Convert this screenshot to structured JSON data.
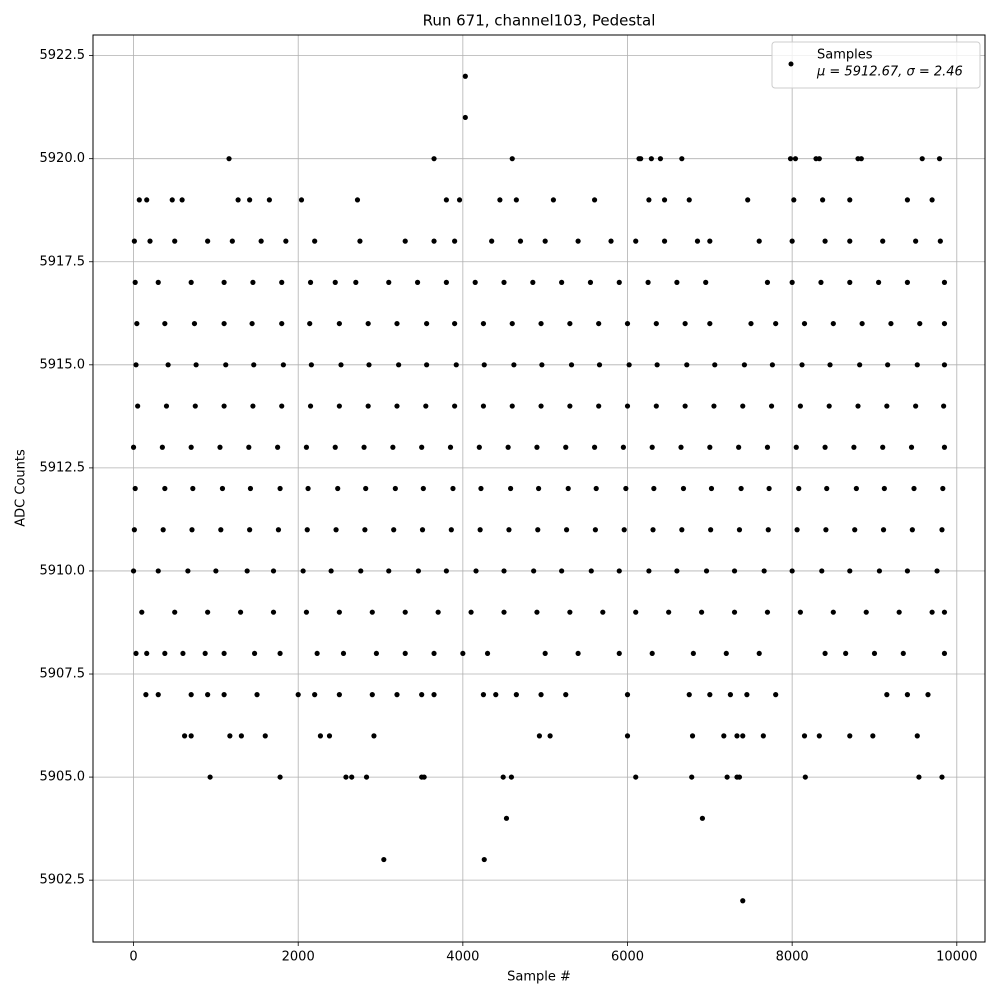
{
  "chart_data": {
    "type": "scatter",
    "title": "Run 671, channel103, Pedestal",
    "x_label": "Sample #",
    "y_label": "ADC Counts",
    "xlim": [
      -492.5,
      10342.5
    ],
    "ylim": [
      5901,
      5923
    ],
    "xticks": [
      0,
      2000,
      4000,
      6000,
      8000,
      10000
    ],
    "yticks": [
      5902.5,
      {
        "value": 5905,
        "label": "5905.0"
      },
      5907.5,
      {
        "value": 5910,
        "label": "5910.0"
      },
      5912.5,
      {
        "value": 5915,
        "label": "5915.0"
      },
      5917.5,
      {
        "value": 5920,
        "label": "5920.0"
      },
      5922.5
    ],
    "grid": true,
    "legend": "upper right",
    "stats_label": "μ = 5912.67, σ = 2.46",
    "series": [
      {
        "name": "Samples",
        "color": "#000000",
        "x": [
          0,
          350,
          700,
          1050,
          1400,
          1750,
          2100,
          2450,
          2800,
          3150,
          3500,
          3850,
          4200,
          4550,
          4900,
          5250,
          5600,
          5950,
          6300,
          6650,
          7000,
          7350,
          7700,
          8050,
          8400,
          8750,
          9100,
          9450,
          9850,
          50,
          400,
          750,
          1100,
          1450,
          1800,
          2150,
          2500,
          2850,
          3200,
          3550,
          3900,
          4250,
          4600,
          4950,
          5300,
          5650,
          6000,
          6350,
          6700,
          7050,
          7400,
          7750,
          8100,
          8450,
          8800,
          9150,
          9500,
          9840,
          20,
          380,
          720,
          1080,
          1420,
          1780,
          2120,
          2480,
          2820,
          3180,
          3520,
          3880,
          4220,
          4580,
          4920,
          5280,
          5620,
          5980,
          6320,
          6680,
          7020,
          7380,
          7720,
          8080,
          8420,
          8780,
          9120,
          9480,
          9830,
          10,
          360,
          710,
          1060,
          1410,
          1760,
          2110,
          2460,
          2810,
          3160,
          3510,
          3860,
          4210,
          4560,
          4910,
          5260,
          5610,
          5960,
          6310,
          6660,
          7010,
          7360,
          7710,
          8060,
          8410,
          8760,
          9110,
          9460,
          9820,
          30,
          420,
          760,
          1120,
          1460,
          1820,
          2160,
          2520,
          2860,
          3220,
          3560,
          3920,
          4260,
          4620,
          4960,
          5320,
          5660,
          6020,
          6360,
          6720,
          7060,
          7420,
          7760,
          8120,
          8460,
          8820,
          9160,
          9520,
          9850,
          0,
          300,
          660,
          1000,
          1380,
          1700,
          2060,
          2400,
          2760,
          3100,
          3460,
          3800,
          4160,
          4500,
          4860,
          5200,
          5560,
          5900,
          6260,
          6600,
          6960,
          7300,
          7660,
          8000,
          8360,
          8700,
          9060,
          9400,
          9760,
          40,
          380,
          740,
          1100,
          1440,
          1800,
          2140,
          2500,
          2850,
          3200,
          3560,
          3900,
          4250,
          4600,
          4950,
          5300,
          5650,
          6000,
          6350,
          6700,
          7000,
          7500,
          7800,
          8150,
          8500,
          8850,
          9200,
          9550,
          9850,
          100,
          500,
          900,
          1300,
          1700,
          2100,
          2500,
          2900,
          3300,
          3700,
          4100,
          4500,
          4900,
          5300,
          5700,
          6100,
          6500,
          6900,
          7300,
          7700,
          8100,
          8500,
          8900,
          9300,
          9700,
          9850,
          20,
          300,
          700,
          1100,
          1450,
          1800,
          2150,
          2450,
          2700,
          3100,
          3450,
          3800,
          4150,
          4500,
          4850,
          5200,
          5550,
          5900,
          6250,
          6600,
          6950,
          7700,
          8000,
          8350,
          8700,
          9050,
          9400,
          9850,
          10,
          200,
          500,
          900,
          1200,
          1550,
          1850,
          2200,
          2750,
          3300,
          3650,
          3900,
          4350,
          4700,
          5000,
          5400,
          5800,
          6100,
          6450,
          6850,
          7000,
          7600,
          8000,
          8400,
          8700,
          9100,
          9500,
          9800,
          70,
          160,
          470,
          590,
          1270,
          1410,
          1650,
          2040,
          2720,
          3800,
          3960,
          4450,
          4650,
          5100,
          5600,
          6260,
          6450,
          6750,
          7460,
          8020,
          8370,
          8700,
          9400,
          9700,
          30,
          160,
          380,
          600,
          870,
          1100,
          1470,
          1780,
          2230,
          2550,
          2950,
          3300,
          3650,
          4000,
          4300,
          5000,
          5400,
          5900,
          6300,
          6800,
          7200,
          7600,
          8400,
          8650,
          9000,
          9350,
          9850,
          150,
          300,
          700,
          900,
          1100,
          1500,
          2000,
          2200,
          2500,
          2900,
          3200,
          3500,
          3650,
          4250,
          4400,
          4650,
          4950,
          5250,
          6000,
          6750,
          7000,
          7250,
          7450,
          7800,
          9150,
          9400,
          9650,
          620,
          700,
          1170,
          1310,
          1600,
          2270,
          2380,
          2920,
          4930,
          5060,
          6000,
          6790,
          7170,
          7330,
          7400,
          7650,
          8150,
          8330,
          8700,
          8980,
          9520,
          930,
          1780,
          2580,
          2650,
          2830,
          3500,
          3530,
          4490,
          4590,
          6100,
          6780,
          7210,
          7330,
          7360,
          8160,
          9540,
          9820,
          1160,
          3650,
          4600,
          6140,
          6160,
          6290,
          6400,
          6660,
          7980,
          8040,
          8290,
          8330,
          8800,
          8840,
          9580,
          9790,
          4030,
          4030,
          3040,
          4260,
          7400,
          4530,
          6910
        ],
        "values": [
          5913,
          5913,
          5913,
          5913,
          5913,
          5913,
          5913,
          5913,
          5913,
          5913,
          5913,
          5913,
          5913,
          5913,
          5913,
          5913,
          5913,
          5913,
          5913,
          5913,
          5913,
          5913,
          5913,
          5913,
          5913,
          5913,
          5913,
          5913,
          5913,
          5914,
          5914,
          5914,
          5914,
          5914,
          5914,
          5914,
          5914,
          5914,
          5914,
          5914,
          5914,
          5914,
          5914,
          5914,
          5914,
          5914,
          5914,
          5914,
          5914,
          5914,
          5914,
          5914,
          5914,
          5914,
          5914,
          5914,
          5914,
          5914,
          5912,
          5912,
          5912,
          5912,
          5912,
          5912,
          5912,
          5912,
          5912,
          5912,
          5912,
          5912,
          5912,
          5912,
          5912,
          5912,
          5912,
          5912,
          5912,
          5912,
          5912,
          5912,
          5912,
          5912,
          5912,
          5912,
          5912,
          5912,
          5912,
          5911,
          5911,
          5911,
          5911,
          5911,
          5911,
          5911,
          5911,
          5911,
          5911,
          5911,
          5911,
          5911,
          5911,
          5911,
          5911,
          5911,
          5911,
          5911,
          5911,
          5911,
          5911,
          5911,
          5911,
          5911,
          5911,
          5911,
          5911,
          5911,
          5915,
          5915,
          5915,
          5915,
          5915,
          5915,
          5915,
          5915,
          5915,
          5915,
          5915,
          5915,
          5915,
          5915,
          5915,
          5915,
          5915,
          5915,
          5915,
          5915,
          5915,
          5915,
          5915,
          5915,
          5915,
          5915,
          5915,
          5915,
          5915,
          5910,
          5910,
          5910,
          5910,
          5910,
          5910,
          5910,
          5910,
          5910,
          5910,
          5910,
          5910,
          5910,
          5910,
          5910,
          5910,
          5910,
          5910,
          5910,
          5910,
          5910,
          5910,
          5910,
          5910,
          5910,
          5910,
          5910,
          5910,
          5910,
          5916,
          5916,
          5916,
          5916,
          5916,
          5916,
          5916,
          5916,
          5916,
          5916,
          5916,
          5916,
          5916,
          5916,
          5916,
          5916,
          5916,
          5916,
          5916,
          5916,
          5916,
          5916,
          5916,
          5916,
          5916,
          5916,
          5916,
          5916,
          5916,
          5909,
          5909,
          5909,
          5909,
          5909,
          5909,
          5909,
          5909,
          5909,
          5909,
          5909,
          5909,
          5909,
          5909,
          5909,
          5909,
          5909,
          5909,
          5909,
          5909,
          5909,
          5909,
          5909,
          5909,
          5909,
          5909,
          5917,
          5917,
          5917,
          5917,
          5917,
          5917,
          5917,
          5917,
          5917,
          5917,
          5917,
          5917,
          5917,
          5917,
          5917,
          5917,
          5917,
          5917,
          5917,
          5917,
          5917,
          5917,
          5917,
          5917,
          5917,
          5917,
          5917,
          5917,
          5918,
          5918,
          5918,
          5918,
          5918,
          5918,
          5918,
          5918,
          5918,
          5918,
          5918,
          5918,
          5918,
          5918,
          5918,
          5918,
          5918,
          5918,
          5918,
          5918,
          5918,
          5918,
          5918,
          5918,
          5918,
          5918,
          5918,
          5918,
          5919,
          5919,
          5919,
          5919,
          5919,
          5919,
          5919,
          5919,
          5919,
          5919,
          5919,
          5919,
          5919,
          5919,
          5919,
          5919,
          5919,
          5919,
          5919,
          5919,
          5919,
          5919,
          5919,
          5919,
          5908,
          5908,
          5908,
          5908,
          5908,
          5908,
          5908,
          5908,
          5908,
          5908,
          5908,
          5908,
          5908,
          5908,
          5908,
          5908,
          5908,
          5908,
          5908,
          5908,
          5908,
          5908,
          5908,
          5908,
          5908,
          5908,
          5908,
          5907,
          5907,
          5907,
          5907,
          5907,
          5907,
          5907,
          5907,
          5907,
          5907,
          5907,
          5907,
          5907,
          5907,
          5907,
          5907,
          5907,
          5907,
          5907,
          5907,
          5907,
          5907,
          5907,
          5907,
          5907,
          5907,
          5907,
          5906,
          5906,
          5906,
          5906,
          5906,
          5906,
          5906,
          5906,
          5906,
          5906,
          5906,
          5906,
          5906,
          5906,
          5906,
          5906,
          5906,
          5906,
          5906,
          5906,
          5906,
          5905,
          5905,
          5905,
          5905,
          5905,
          5905,
          5905,
          5905,
          5905,
          5905,
          5905,
          5905,
          5905,
          5905,
          5905,
          5905,
          5905,
          5920,
          5920,
          5920,
          5920,
          5920,
          5920,
          5920,
          5920,
          5920,
          5920,
          5920,
          5920,
          5920,
          5920,
          5920,
          5920,
          5922,
          5921,
          5903,
          5903,
          5902,
          5904,
          5904
        ]
      }
    ]
  }
}
